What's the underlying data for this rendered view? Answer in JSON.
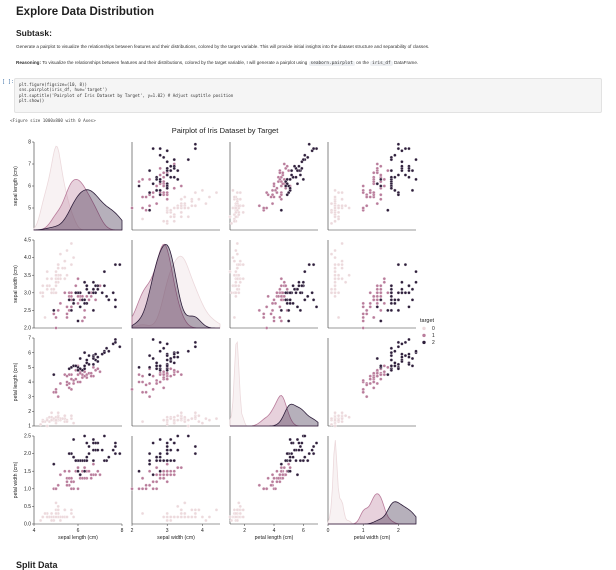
{
  "notebook": {
    "heading": "Explore Data Distribution",
    "subtask_heading": "Subtask:",
    "subtask_text": "Generate a pairplot to visualize the relationships between features and their distributions, colored by the target variable. This will provide initial insights into the dataset structure and separability of classes.",
    "reasoning_label": "Reasoning:",
    "reasoning_text": " To visualize the relationships between features and their distributions, colored by the target variable, I will generate a pairplot using ",
    "reasoning_code1": "seaborn.pairplot",
    "reasoning_mid": " on the ",
    "reasoning_code2": "iris_df",
    "reasoning_end": " DataFrame.",
    "cell_prompt": "[ ]:",
    "code_lines": [
      "plt.figure(figsize=(10, 8))",
      "sns.pairplot(iris_df, hue='target')",
      "plt.suptitle('Pairplot of Iris Dataset by Target', y=1.02) # Adjust suptitle position",
      "plt.show()"
    ],
    "output_text": "<Figure size 1000x800 with 0 Axes>",
    "next_heading": "Split Data"
  },
  "chart_data": {
    "type": "scatter",
    "title": "Pairplot of Iris Dataset by Target",
    "features": [
      "sepal length (cm)",
      "sepal width (cm)",
      "petal length (cm)",
      "petal width (cm)"
    ],
    "legend": {
      "title": "target",
      "placement": "right",
      "entries": [
        "0",
        "1",
        "2"
      ]
    },
    "colors": {
      "0": "#ecd9dc",
      "1": "#b97c9b",
      "2": "#2e1e3b"
    },
    "ranges": [
      [
        4,
        8
      ],
      [
        2,
        4.5
      ],
      [
        1,
        7
      ],
      [
        0,
        2.5
      ]
    ],
    "ticks": [
      [
        5,
        6,
        7,
        8
      ],
      [
        2.0,
        2.5,
        3.0,
        3.5,
        4.0,
        4.5
      ],
      [
        1,
        2,
        3,
        4,
        5,
        6,
        7
      ],
      [
        0.0,
        0.5,
        1.0,
        1.5,
        2.0,
        2.5
      ]
    ],
    "x_ticks": [
      [
        4,
        6,
        8
      ],
      [
        2,
        3,
        4,
        5
      ],
      [
        0,
        2,
        4,
        6,
        8
      ],
      [
        0,
        1,
        2,
        3
      ]
    ],
    "series": [
      {
        "name": "0",
        "points": [
          [
            5.1,
            3.5,
            1.4,
            0.2
          ],
          [
            4.9,
            3.0,
            1.4,
            0.2
          ],
          [
            4.7,
            3.2,
            1.3,
            0.2
          ],
          [
            4.6,
            3.1,
            1.5,
            0.2
          ],
          [
            5.0,
            3.6,
            1.4,
            0.2
          ],
          [
            5.4,
            3.9,
            1.7,
            0.4
          ],
          [
            4.6,
            3.4,
            1.4,
            0.3
          ],
          [
            5.0,
            3.4,
            1.5,
            0.2
          ],
          [
            4.4,
            2.9,
            1.4,
            0.2
          ],
          [
            4.9,
            3.1,
            1.5,
            0.1
          ],
          [
            5.4,
            3.7,
            1.5,
            0.2
          ],
          [
            4.8,
            3.4,
            1.6,
            0.2
          ],
          [
            4.8,
            3.0,
            1.4,
            0.1
          ],
          [
            4.3,
            3.0,
            1.1,
            0.1
          ],
          [
            5.8,
            4.0,
            1.2,
            0.2
          ],
          [
            5.7,
            4.4,
            1.5,
            0.4
          ],
          [
            5.4,
            3.9,
            1.3,
            0.4
          ],
          [
            5.1,
            3.5,
            1.4,
            0.3
          ],
          [
            5.7,
            3.8,
            1.7,
            0.3
          ],
          [
            5.1,
            3.8,
            1.5,
            0.3
          ],
          [
            5.4,
            3.4,
            1.7,
            0.2
          ],
          [
            5.1,
            3.7,
            1.5,
            0.4
          ],
          [
            4.6,
            3.6,
            1.0,
            0.2
          ],
          [
            5.1,
            3.3,
            1.7,
            0.5
          ],
          [
            4.8,
            3.4,
            1.9,
            0.2
          ],
          [
            5.0,
            3.0,
            1.6,
            0.2
          ],
          [
            5.0,
            3.4,
            1.6,
            0.4
          ],
          [
            5.2,
            3.5,
            1.5,
            0.2
          ],
          [
            5.2,
            3.4,
            1.4,
            0.2
          ],
          [
            4.7,
            3.2,
            1.6,
            0.2
          ],
          [
            4.8,
            3.1,
            1.6,
            0.2
          ],
          [
            5.4,
            3.4,
            1.5,
            0.4
          ],
          [
            5.2,
            4.1,
            1.5,
            0.1
          ],
          [
            5.5,
            4.2,
            1.4,
            0.2
          ],
          [
            4.9,
            3.1,
            1.5,
            0.2
          ],
          [
            5.0,
            3.2,
            1.2,
            0.2
          ],
          [
            5.5,
            3.5,
            1.3,
            0.2
          ],
          [
            4.4,
            3.0,
            1.3,
            0.2
          ],
          [
            5.1,
            3.4,
            1.5,
            0.2
          ],
          [
            5.0,
            3.5,
            1.3,
            0.3
          ],
          [
            4.5,
            2.3,
            1.3,
            0.3
          ],
          [
            4.4,
            3.2,
            1.3,
            0.2
          ],
          [
            5.0,
            3.5,
            1.6,
            0.6
          ],
          [
            5.1,
            3.8,
            1.9,
            0.4
          ],
          [
            4.8,
            3.0,
            1.4,
            0.3
          ],
          [
            5.1,
            3.8,
            1.6,
            0.2
          ],
          [
            4.6,
            3.2,
            1.4,
            0.2
          ],
          [
            5.3,
            3.7,
            1.5,
            0.2
          ],
          [
            5.0,
            3.3,
            1.4,
            0.2
          ]
        ]
      },
      {
        "name": "1",
        "points": [
          [
            7.0,
            3.2,
            4.7,
            1.4
          ],
          [
            6.4,
            3.2,
            4.5,
            1.5
          ],
          [
            6.9,
            3.1,
            4.9,
            1.5
          ],
          [
            5.5,
            2.3,
            4.0,
            1.3
          ],
          [
            6.5,
            2.8,
            4.6,
            1.5
          ],
          [
            5.7,
            2.8,
            4.5,
            1.3
          ],
          [
            6.3,
            3.3,
            4.7,
            1.6
          ],
          [
            4.9,
            2.4,
            3.3,
            1.0
          ],
          [
            6.6,
            2.9,
            4.6,
            1.3
          ],
          [
            5.2,
            2.7,
            3.9,
            1.4
          ],
          [
            5.0,
            2.0,
            3.5,
            1.0
          ],
          [
            5.9,
            3.0,
            4.2,
            1.5
          ],
          [
            6.0,
            2.2,
            4.0,
            1.0
          ],
          [
            6.1,
            2.9,
            4.7,
            1.4
          ],
          [
            5.6,
            2.9,
            3.6,
            1.3
          ],
          [
            6.7,
            3.1,
            4.4,
            1.4
          ],
          [
            5.6,
            3.0,
            4.5,
            1.5
          ],
          [
            5.8,
            2.7,
            4.1,
            1.0
          ],
          [
            6.2,
            2.2,
            4.5,
            1.5
          ],
          [
            5.6,
            2.5,
            3.9,
            1.1
          ],
          [
            5.9,
            3.2,
            4.8,
            1.8
          ],
          [
            6.1,
            2.8,
            4.0,
            1.3
          ],
          [
            6.3,
            2.5,
            4.9,
            1.5
          ],
          [
            6.4,
            2.9,
            4.3,
            1.3
          ],
          [
            6.6,
            3.0,
            4.4,
            1.4
          ],
          [
            6.8,
            2.8,
            4.8,
            1.4
          ],
          [
            6.7,
            3.0,
            5.0,
            1.7
          ],
          [
            6.0,
            2.9,
            4.5,
            1.5
          ],
          [
            5.7,
            2.6,
            3.5,
            1.0
          ],
          [
            5.5,
            2.4,
            3.8,
            1.1
          ],
          [
            5.8,
            2.7,
            3.9,
            1.2
          ],
          [
            6.0,
            2.7,
            5.1,
            1.6
          ],
          [
            5.4,
            3.0,
            4.5,
            1.5
          ],
          [
            6.0,
            3.4,
            4.5,
            1.6
          ],
          [
            6.3,
            2.3,
            4.4,
            1.3
          ],
          [
            5.5,
            2.6,
            4.4,
            1.2
          ],
          [
            6.1,
            3.0,
            4.6,
            1.4
          ],
          [
            5.0,
            2.3,
            3.3,
            1.0
          ],
          [
            5.7,
            3.0,
            4.2,
            1.2
          ],
          [
            5.7,
            2.9,
            4.2,
            1.3
          ],
          [
            6.2,
            2.9,
            4.3,
            1.3
          ],
          [
            5.1,
            2.5,
            3.0,
            1.1
          ]
        ]
      },
      {
        "name": "2",
        "points": [
          [
            6.3,
            3.3,
            6.0,
            2.5
          ],
          [
            5.8,
            2.7,
            5.1,
            1.9
          ],
          [
            7.1,
            3.0,
            5.9,
            2.1
          ],
          [
            6.5,
            3.0,
            5.8,
            2.2
          ],
          [
            7.6,
            3.0,
            6.6,
            2.1
          ],
          [
            4.9,
            2.5,
            4.5,
            1.7
          ],
          [
            7.3,
            2.9,
            6.3,
            1.8
          ],
          [
            6.7,
            2.5,
            5.8,
            1.8
          ],
          [
            7.2,
            3.6,
            6.1,
            2.5
          ],
          [
            6.4,
            2.7,
            5.3,
            1.9
          ],
          [
            6.8,
            3.0,
            5.5,
            2.1
          ],
          [
            5.7,
            2.5,
            5.0,
            2.0
          ],
          [
            5.8,
            2.8,
            5.1,
            2.4
          ],
          [
            6.4,
            3.2,
            5.3,
            2.3
          ],
          [
            7.7,
            3.8,
            6.7,
            2.2
          ],
          [
            7.7,
            2.6,
            6.9,
            2.3
          ],
          [
            6.0,
            2.2,
            5.0,
            1.5
          ],
          [
            6.9,
            3.2,
            5.7,
            2.3
          ],
          [
            5.6,
            2.8,
            4.9,
            2.0
          ],
          [
            7.7,
            2.8,
            6.7,
            2.0
          ],
          [
            6.3,
            2.7,
            4.9,
            1.8
          ],
          [
            6.7,
            3.3,
            5.7,
            2.1
          ],
          [
            7.2,
            3.2,
            6.0,
            1.8
          ],
          [
            6.2,
            2.8,
            4.8,
            1.8
          ],
          [
            6.1,
            3.0,
            4.9,
            1.8
          ],
          [
            7.4,
            2.8,
            6.1,
            1.9
          ],
          [
            7.9,
            3.8,
            6.4,
            2.0
          ],
          [
            6.3,
            2.8,
            5.1,
            1.5
          ],
          [
            6.1,
            2.6,
            5.6,
            1.4
          ],
          [
            6.4,
            3.1,
            5.5,
            1.8
          ],
          [
            6.0,
            3.0,
            4.8,
            1.8
          ],
          [
            6.9,
            3.1,
            5.4,
            2.1
          ],
          [
            6.7,
            3.1,
            5.6,
            2.4
          ],
          [
            5.8,
            2.7,
            5.1,
            1.9
          ],
          [
            6.8,
            3.2,
            5.9,
            2.3
          ],
          [
            6.7,
            3.0,
            5.2,
            2.3
          ],
          [
            6.5,
            3.0,
            5.2,
            2.0
          ],
          [
            5.9,
            3.0,
            5.1,
            1.8
          ]
        ]
      }
    ]
  }
}
